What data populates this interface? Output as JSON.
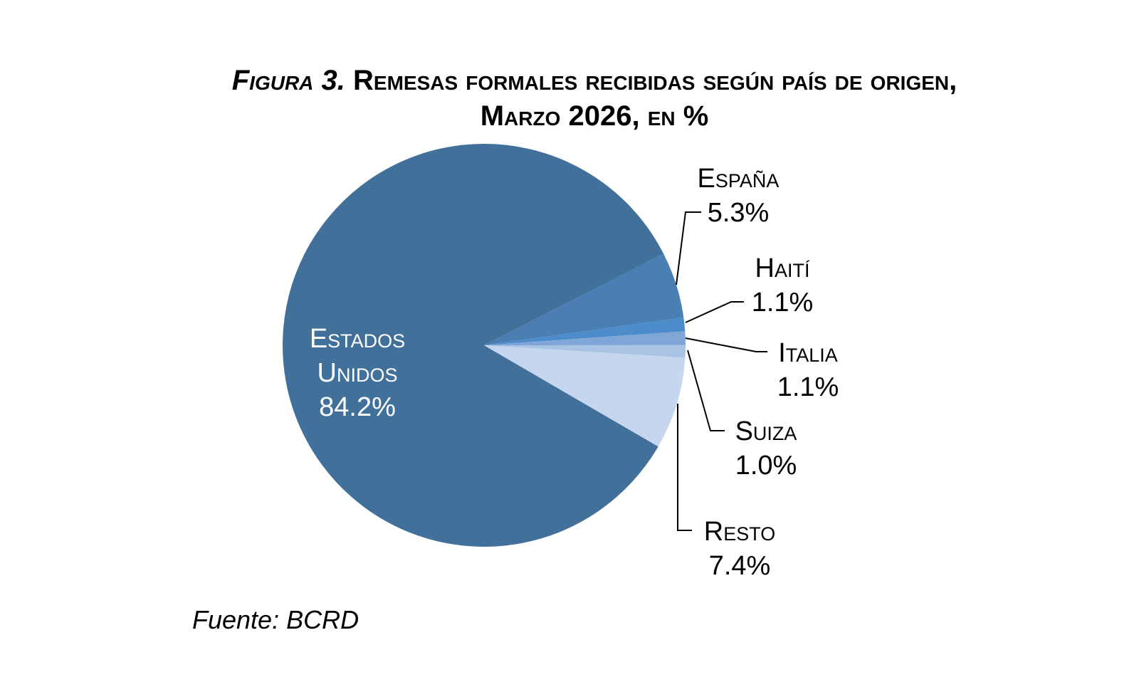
{
  "chart_data": {
    "type": "pie",
    "title_prefix": "Figura 3.",
    "title_line1": "Remesas formales recibidas según país de origen,",
    "title_line2": "Marzo 2026, en %",
    "categories": [
      "Estados Unidos",
      "España",
      "Haití",
      "Italia",
      "Suiza",
      "Resto"
    ],
    "values": [
      84.2,
      5.3,
      1.1,
      1.1,
      1.0,
      7.4
    ],
    "value_labels": [
      "84.2%",
      "5.3%",
      "1.1%",
      "1.1%",
      "1.0%",
      "7.4%"
    ],
    "label_lines": [
      [
        "Estados",
        "Unidos"
      ],
      [
        "España"
      ],
      [
        "Haití"
      ],
      [
        "Italia"
      ],
      [
        "Suiza"
      ],
      [
        "Resto"
      ]
    ],
    "colors": [
      "#41709a",
      "#4a7fb3",
      "#4d8ccb",
      "#7fa6d6",
      "#a9c3e4",
      "#c6d6ee"
    ],
    "source": "Fuente: BCRD"
  }
}
